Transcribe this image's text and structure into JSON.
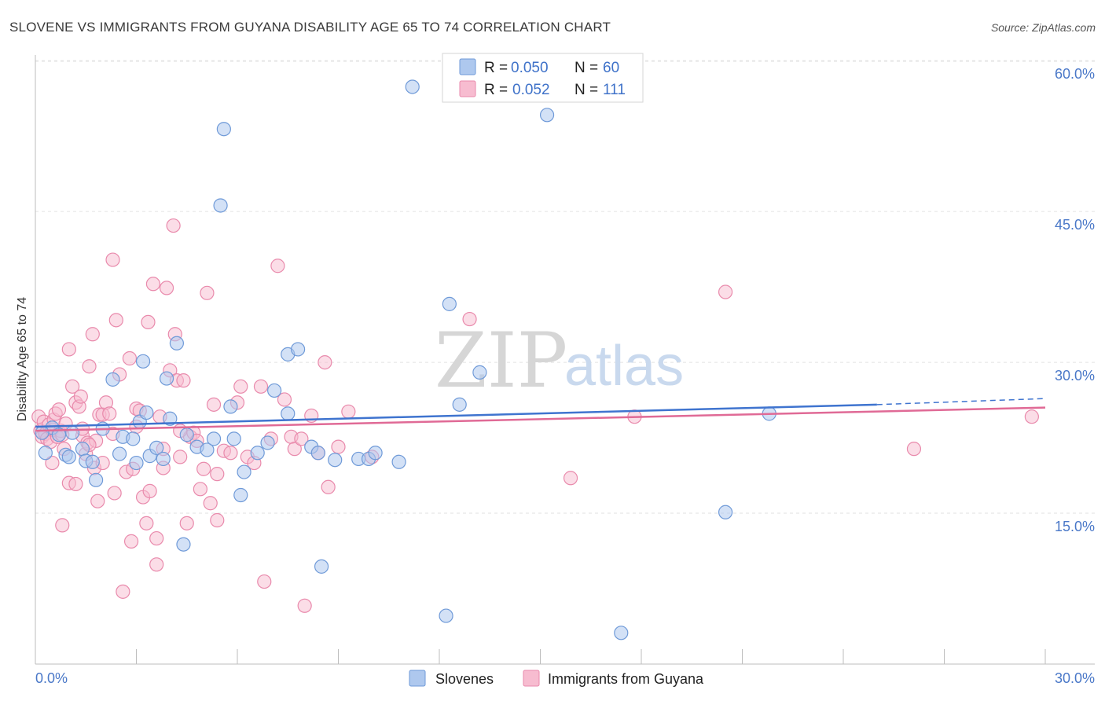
{
  "chart_data": {
    "type": "scatter",
    "title": "SLOVENE VS IMMIGRANTS FROM GUYANA DISABILITY AGE 65 TO 74 CORRELATION CHART",
    "source": "Source: ZipAtlas.com",
    "xlabel": "",
    "ylabel": "Disability Age 65 to 74",
    "xlim": [
      0,
      30
    ],
    "ylim": [
      0,
      61.5
    ],
    "x_tick_labels": [
      "0.0%",
      "30.0%"
    ],
    "y_ticks": [
      15,
      30,
      45,
      60
    ],
    "y_tick_labels": [
      "15.0%",
      "30.0%",
      "45.0%",
      "60.0%"
    ],
    "grid": true,
    "watermark": {
      "zip": "ZIP",
      "atlas": "atlas"
    },
    "legend": {
      "r_label": "R =",
      "n_label": "N =",
      "entries": [
        {
          "series": "Slovenes",
          "r": "0.050",
          "n": "60"
        },
        {
          "series": "Immigrants from Guyana",
          "r": "0.052",
          "n": "111"
        }
      ]
    },
    "colors": {
      "slovenes_fill": "#aec8ee",
      "slovenes_stroke": "#6f9ad8",
      "slovenes_line": "#3f74cf",
      "guyana_fill": "#f7bcd0",
      "guyana_stroke": "#e98aac",
      "guyana_line": "#e06a96"
    },
    "series": [
      {
        "name": "Slovenes",
        "trend": {
          "x0": 0,
          "y0": 23.6,
          "x1": 25,
          "y1": 25.8,
          "dash_to_x": 30,
          "dash_to_y": 26.4
        },
        "points": [
          [
            0.3,
            21.0
          ],
          [
            0.5,
            23.5
          ],
          [
            0.7,
            22.8
          ],
          [
            0.9,
            20.8
          ],
          [
            1.1,
            23.0
          ],
          [
            1.4,
            21.4
          ],
          [
            1.5,
            20.2
          ],
          [
            1.7,
            20.1
          ],
          [
            1.8,
            18.3
          ],
          [
            2.0,
            23.4
          ],
          [
            2.3,
            28.3
          ],
          [
            2.6,
            22.6
          ],
          [
            2.9,
            22.4
          ],
          [
            3.1,
            24.1
          ],
          [
            3.2,
            30.1
          ],
          [
            3.3,
            25.0
          ],
          [
            3.4,
            20.7
          ],
          [
            3.6,
            21.5
          ],
          [
            3.8,
            20.4
          ],
          [
            3.9,
            28.4
          ],
          [
            4.0,
            24.4
          ],
          [
            4.2,
            31.9
          ],
          [
            4.5,
            22.8
          ],
          [
            4.8,
            21.6
          ],
          [
            5.1,
            21.3
          ],
          [
            5.3,
            22.4
          ],
          [
            5.6,
            53.2
          ],
          [
            5.5,
            45.6
          ],
          [
            5.8,
            25.6
          ],
          [
            5.9,
            22.4
          ],
          [
            6.1,
            16.8
          ],
          [
            6.2,
            19.1
          ],
          [
            6.6,
            21.0
          ],
          [
            7.1,
            27.2
          ],
          [
            7.5,
            30.8
          ],
          [
            7.8,
            31.3
          ],
          [
            7.5,
            24.9
          ],
          [
            8.2,
            21.6
          ],
          [
            8.4,
            21.0
          ],
          [
            8.5,
            9.7
          ],
          [
            8.9,
            20.3
          ],
          [
            9.6,
            20.4
          ],
          [
            9.9,
            20.4
          ],
          [
            10.1,
            21.0
          ],
          [
            10.8,
            20.1
          ],
          [
            11.2,
            57.4
          ],
          [
            12.2,
            4.8
          ],
          [
            12.3,
            35.8
          ],
          [
            12.6,
            25.8
          ],
          [
            13.2,
            29.0
          ],
          [
            15.2,
            54.6
          ],
          [
            17.4,
            3.1
          ],
          [
            20.5,
            15.1
          ],
          [
            21.8,
            24.9
          ],
          [
            1.0,
            20.6
          ],
          [
            2.5,
            20.9
          ],
          [
            4.4,
            11.9
          ],
          [
            0.2,
            23.0
          ],
          [
            6.9,
            22.0
          ],
          [
            3.0,
            20.0
          ]
        ]
      },
      {
        "name": "Immigrants from Guyana",
        "trend": {
          "x0": 0,
          "y0": 23.2,
          "x1": 30,
          "y1": 25.5
        },
        "points": [
          [
            0.1,
            24.6
          ],
          [
            0.15,
            23.2
          ],
          [
            0.2,
            22.6
          ],
          [
            0.25,
            24.1
          ],
          [
            0.3,
            22.9
          ],
          [
            0.35,
            22.4
          ],
          [
            0.4,
            23.8
          ],
          [
            0.45,
            22.1
          ],
          [
            0.5,
            23.3
          ],
          [
            0.55,
            24.3
          ],
          [
            0.6,
            24.9
          ],
          [
            0.65,
            22.6
          ],
          [
            0.7,
            25.3
          ],
          [
            0.75,
            23.2
          ],
          [
            0.8,
            22.8
          ],
          [
            0.85,
            21.4
          ],
          [
            0.9,
            23.9
          ],
          [
            1.0,
            31.3
          ],
          [
            1.1,
            27.6
          ],
          [
            1.2,
            26.0
          ],
          [
            1.3,
            25.6
          ],
          [
            1.35,
            26.6
          ],
          [
            1.4,
            22.7
          ],
          [
            1.5,
            20.9
          ],
          [
            1.55,
            22.0
          ],
          [
            1.6,
            29.6
          ],
          [
            1.7,
            32.8
          ],
          [
            1.75,
            19.5
          ],
          [
            1.8,
            22.2
          ],
          [
            1.85,
            16.2
          ],
          [
            1.9,
            24.8
          ],
          [
            2.0,
            24.8
          ],
          [
            2.1,
            26.0
          ],
          [
            2.2,
            24.9
          ],
          [
            2.3,
            40.2
          ],
          [
            2.35,
            17.0
          ],
          [
            2.4,
            34.2
          ],
          [
            2.5,
            28.8
          ],
          [
            2.6,
            7.2
          ],
          [
            2.7,
            19.1
          ],
          [
            2.8,
            30.4
          ],
          [
            2.85,
            12.2
          ],
          [
            2.9,
            19.4
          ],
          [
            3.0,
            25.4
          ],
          [
            3.1,
            25.2
          ],
          [
            3.2,
            16.6
          ],
          [
            3.3,
            14.0
          ],
          [
            3.35,
            34.0
          ],
          [
            3.4,
            17.2
          ],
          [
            3.5,
            37.8
          ],
          [
            3.6,
            9.9
          ],
          [
            3.7,
            24.6
          ],
          [
            3.8,
            19.5
          ],
          [
            3.9,
            37.4
          ],
          [
            4.0,
            29.2
          ],
          [
            4.1,
            43.6
          ],
          [
            4.15,
            32.8
          ],
          [
            4.2,
            28.2
          ],
          [
            4.3,
            20.6
          ],
          [
            4.4,
            28.2
          ],
          [
            4.5,
            14.0
          ],
          [
            4.6,
            22.6
          ],
          [
            4.7,
            23.0
          ],
          [
            4.9,
            17.4
          ],
          [
            5.0,
            19.4
          ],
          [
            5.1,
            36.9
          ],
          [
            5.2,
            16.0
          ],
          [
            5.3,
            25.8
          ],
          [
            5.4,
            18.9
          ],
          [
            5.6,
            21.2
          ],
          [
            5.8,
            21.0
          ],
          [
            6.0,
            26.0
          ],
          [
            6.1,
            27.6
          ],
          [
            6.3,
            20.6
          ],
          [
            6.5,
            20.0
          ],
          [
            6.8,
            8.2
          ],
          [
            7.0,
            22.4
          ],
          [
            7.2,
            39.6
          ],
          [
            7.4,
            26.3
          ],
          [
            7.6,
            22.6
          ],
          [
            7.7,
            21.4
          ],
          [
            7.9,
            22.4
          ],
          [
            8.0,
            5.8
          ],
          [
            8.2,
            24.7
          ],
          [
            8.4,
            21.0
          ],
          [
            8.6,
            30.0
          ],
          [
            9.0,
            21.6
          ],
          [
            9.3,
            25.1
          ],
          [
            10.0,
            20.6
          ],
          [
            12.9,
            34.3
          ],
          [
            15.9,
            18.5
          ],
          [
            17.8,
            24.6
          ],
          [
            20.5,
            37.0
          ],
          [
            26.1,
            21.4
          ],
          [
            29.6,
            24.6
          ],
          [
            0.5,
            20.0
          ],
          [
            1.0,
            18.0
          ],
          [
            1.6,
            21.8
          ],
          [
            2.3,
            22.9
          ],
          [
            3.0,
            23.6
          ],
          [
            3.6,
            12.5
          ],
          [
            4.8,
            22.2
          ],
          [
            5.4,
            14.3
          ],
          [
            6.7,
            27.6
          ],
          [
            8.7,
            17.6
          ],
          [
            1.2,
            17.9
          ],
          [
            2.0,
            20.0
          ],
          [
            0.8,
            13.8
          ],
          [
            1.4,
            23.4
          ],
          [
            3.8,
            21.4
          ],
          [
            4.3,
            23.2
          ]
        ]
      }
    ]
  }
}
